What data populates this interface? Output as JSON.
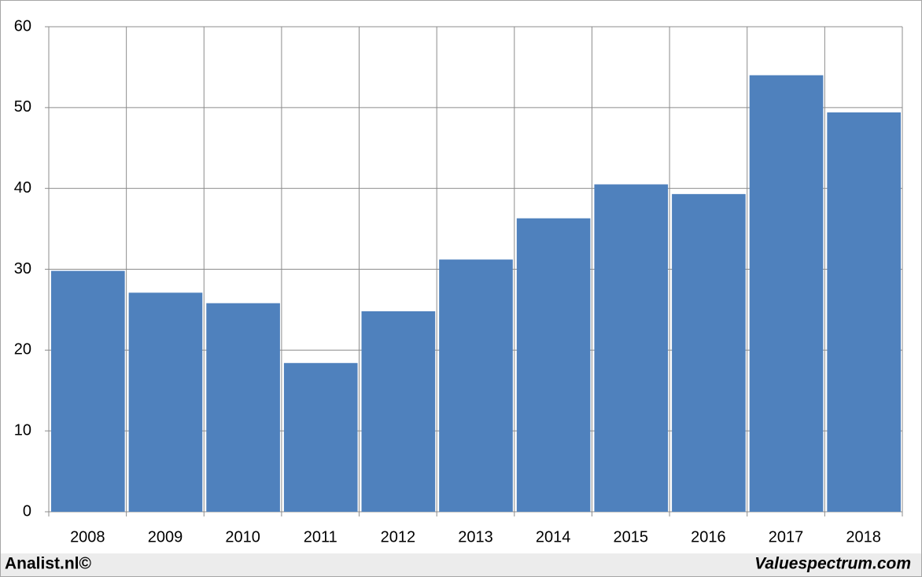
{
  "chart_data": {
    "type": "bar",
    "categories": [
      "2008",
      "2009",
      "2010",
      "2011",
      "2012",
      "2013",
      "2014",
      "2015",
      "2016",
      "2017",
      "2018"
    ],
    "values": [
      29.8,
      27.1,
      25.8,
      18.4,
      24.8,
      31.2,
      36.3,
      40.5,
      39.3,
      54.0,
      49.4
    ],
    "color": "#4f81bd",
    "ylim": [
      0,
      60
    ],
    "yticks": [
      0,
      10,
      20,
      30,
      40,
      50,
      60
    ],
    "grid": true
  },
  "footer": {
    "left": "Analist.nl©",
    "right": "Valuespectrum.com"
  }
}
